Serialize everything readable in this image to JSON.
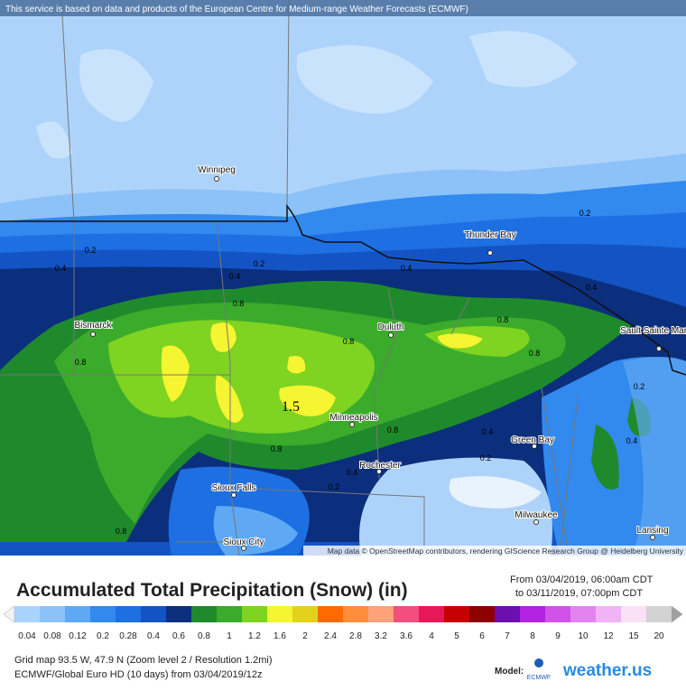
{
  "attribution": "This service is based on data and products of the European Centre for Medium-range Weather Forecasts (ECMWF)",
  "map_credit": "Map data © OpenStreetMap contributors, rendering GIScience Research Group @ Heidelberg University",
  "cities": [
    "Winnipeg",
    "Thunder Bay",
    "Bismarck",
    "Duluth",
    "Sault Sainte Marie",
    "Minneapolis",
    "Green Bay",
    "Rochester",
    "Sioux Falls",
    "Milwaukee",
    "Sioux City",
    "Lansing"
  ],
  "contour_labels": [
    "0.2",
    "0.2",
    "0.2",
    "0.4",
    "0.4",
    "0.4",
    "0.4",
    "0.8",
    "0.8",
    "0.8",
    "0.8",
    "0.8",
    "1.5",
    "0.8",
    "0.4",
    "0.8",
    "0.4",
    "0.2",
    "0.2",
    "0.2",
    "0.4",
    "0.8"
  ],
  "title": "Accumulated Total Precipitation (Snow) (in)",
  "period": {
    "from": "From 03/04/2019, 06:00am CDT",
    "to": "to 03/11/2019, 07:00pm CDT"
  },
  "legend": [
    {
      "label": "0.04",
      "color": "#a9d3fb"
    },
    {
      "label": "0.08",
      "color": "#8cc2f8"
    },
    {
      "label": "0.12",
      "color": "#5fa8f4"
    },
    {
      "label": "0.2",
      "color": "#3289ee"
    },
    {
      "label": "0.28",
      "color": "#1d6fe2"
    },
    {
      "label": "0.4",
      "color": "#1453c4"
    },
    {
      "label": "0.6",
      "color": "#0b2f7c"
    },
    {
      "label": "0.8",
      "color": "#1f8a2c"
    },
    {
      "label": "1",
      "color": "#3bab2b"
    },
    {
      "label": "1.2",
      "color": "#7fd321"
    },
    {
      "label": "1.6",
      "color": "#f5f531"
    },
    {
      "label": "2",
      "color": "#e3d21d"
    },
    {
      "label": "2.4",
      "color": "#ff6a00"
    },
    {
      "label": "2.8",
      "color": "#ff8d3b"
    },
    {
      "label": "3.2",
      "color": "#ffa27a"
    },
    {
      "label": "3.6",
      "color": "#f24e7e"
    },
    {
      "label": "4",
      "color": "#e6185a"
    },
    {
      "label": "5",
      "color": "#c40000"
    },
    {
      "label": "6",
      "color": "#8c0000"
    },
    {
      "label": "7",
      "color": "#6b0fae"
    },
    {
      "label": "8",
      "color": "#b222e0"
    },
    {
      "label": "9",
      "color": "#d052e8"
    },
    {
      "label": "10",
      "color": "#e283f0"
    },
    {
      "label": "12",
      "color": "#f0b3f5"
    },
    {
      "label": "15",
      "color": "#f8e2f8"
    },
    {
      "label": "20",
      "color": "#d2d2d2"
    }
  ],
  "info": [
    "Grid map 93.5 W, 47.9 N (Zoom level 2 / Resolution 1.2mi)",
    "ECMWF/Global Euro HD (10 days) from 03/04/2019/12z"
  ],
  "model": {
    "label": "Model:",
    "name": "ECMWF"
  },
  "brand": "weather.us"
}
